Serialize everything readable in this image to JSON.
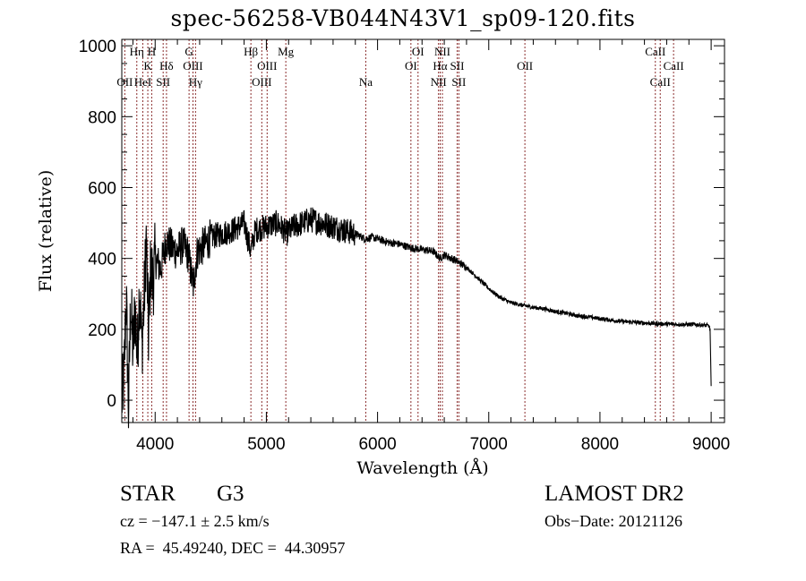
{
  "chart_data": {
    "type": "line",
    "title": "spec-56258-VB044N43V1_sp09-120.fits",
    "xlabel": "Wavelength (Å)",
    "ylabel": "Flux (relative)",
    "xlim": [
      3700,
      9120
    ],
    "ylim": [
      -63,
      1018
    ],
    "xticks": [
      4000,
      5000,
      6000,
      7000,
      8000,
      9000
    ],
    "xtick_labels": [
      "4000",
      "5000",
      "6000",
      "7000",
      "8000",
      "9000"
    ],
    "yticks": [
      0,
      200,
      400,
      600,
      800,
      1000
    ],
    "ytick_labels": [
      "0",
      "200",
      "400",
      "600",
      "800",
      "1000"
    ],
    "x_minor_step": 200,
    "y_minor_step": 50,
    "grid": false,
    "line_color": "#000000",
    "marker_color": "#8b2e2e",
    "spectrum_anchors": [
      [
        3700,
        0
      ],
      [
        3720,
        60
      ],
      [
        3740,
        300
      ],
      [
        3760,
        -30
      ],
      [
        3780,
        280
      ],
      [
        3800,
        140
      ],
      [
        3820,
        260
      ],
      [
        3840,
        120
      ],
      [
        3860,
        330
      ],
      [
        3880,
        150
      ],
      [
        3900,
        270
      ],
      [
        3920,
        460
      ],
      [
        3940,
        180
      ],
      [
        3960,
        380
      ],
      [
        3980,
        330
      ],
      [
        4000,
        400
      ],
      [
        4050,
        370
      ],
      [
        4100,
        450
      ],
      [
        4150,
        430
      ],
      [
        4200,
        420
      ],
      [
        4250,
        440
      ],
      [
        4300,
        410
      ],
      [
        4340,
        320
      ],
      [
        4380,
        420
      ],
      [
        4450,
        440
      ],
      [
        4500,
        460
      ],
      [
        4600,
        470
      ],
      [
        4700,
        480
      ],
      [
        4800,
        500
      ],
      [
        4860,
        420
      ],
      [
        4900,
        480
      ],
      [
        5000,
        490
      ],
      [
        5100,
        500
      ],
      [
        5180,
        470
      ],
      [
        5250,
        490
      ],
      [
        5400,
        510
      ],
      [
        5500,
        500
      ],
      [
        5600,
        490
      ],
      [
        5700,
        480
      ],
      [
        5800,
        470
      ],
      [
        5890,
        455
      ],
      [
        5950,
        460
      ],
      [
        6000,
        455
      ],
      [
        6100,
        445
      ],
      [
        6200,
        440
      ],
      [
        6300,
        430
      ],
      [
        6400,
        425
      ],
      [
        6500,
        420
      ],
      [
        6562,
        400
      ],
      [
        6600,
        410
      ],
      [
        6700,
        395
      ],
      [
        6800,
        375
      ],
      [
        6900,
        345
      ],
      [
        7000,
        315
      ],
      [
        7100,
        290
      ],
      [
        7200,
        275
      ],
      [
        7300,
        268
      ],
      [
        7400,
        262
      ],
      [
        7500,
        258
      ],
      [
        7600,
        250
      ],
      [
        7700,
        245
      ],
      [
        7800,
        238
      ],
      [
        7900,
        235
      ],
      [
        8000,
        230
      ],
      [
        8100,
        226
      ],
      [
        8200,
        222
      ],
      [
        8300,
        220
      ],
      [
        8400,
        218
      ],
      [
        8500,
        216
      ],
      [
        8600,
        215
      ],
      [
        8700,
        214
      ],
      [
        8800,
        214
      ],
      [
        8900,
        213
      ],
      [
        8980,
        210
      ],
      [
        8990,
        200
      ],
      [
        9000,
        40
      ]
    ],
    "line_markers": [
      {
        "label": "OII",
        "wavelength": 3727,
        "row": 3
      },
      {
        "label": "Hη",
        "wavelength": 3835,
        "row": 1
      },
      {
        "label": "HeI",
        "wavelength": 3889,
        "row": 3
      },
      {
        "label": "K",
        "wavelength": 3934,
        "row": 2
      },
      {
        "label": "H",
        "wavelength": 3969,
        "row": 1
      },
      {
        "label": "SII",
        "wavelength": 4072,
        "row": 3
      },
      {
        "label": "Hδ",
        "wavelength": 4102,
        "row": 2
      },
      {
        "label": "G",
        "wavelength": 4305,
        "row": 1
      },
      {
        "label": "OIII",
        "wavelength": 4340,
        "row": 2
      },
      {
        "label": "Hγ",
        "wavelength": 4363,
        "row": 3
      },
      {
        "label": "Hβ",
        "wavelength": 4861,
        "row": 1
      },
      {
        "label": "OIII",
        "wavelength": 4959,
        "row": 3
      },
      {
        "label": "OIII",
        "wavelength": 5007,
        "row": 2
      },
      {
        "label": "Mg",
        "wavelength": 5175,
        "row": 1
      },
      {
        "label": "Na",
        "wavelength": 5894,
        "row": 3
      },
      {
        "label": "OI",
        "wavelength": 6300,
        "row": 2
      },
      {
        "label": "OI",
        "wavelength": 6364,
        "row": 1
      },
      {
        "label": "NII",
        "wavelength": 6548,
        "row": 3
      },
      {
        "label": "Hα",
        "wavelength": 6563,
        "row": 2
      },
      {
        "label": "NII",
        "wavelength": 6583,
        "row": 1
      },
      {
        "label": "SII",
        "wavelength": 6716,
        "row": 2
      },
      {
        "label": "SII",
        "wavelength": 6731,
        "row": 3
      },
      {
        "label": "OII",
        "wavelength": 7325,
        "row": 2
      },
      {
        "label": "CaII",
        "wavelength": 8498,
        "row": 1
      },
      {
        "label": "CaII",
        "wavelength": 8542,
        "row": 3
      },
      {
        "label": "CaII",
        "wavelength": 8662,
        "row": 2
      }
    ]
  },
  "info": {
    "object_class": "STAR",
    "subclass": "G3",
    "survey": "LAMOST DR2",
    "redshift": "cz = −147.1 ± 2.5 km/s",
    "obs_date": "Obs−Date: 20121126",
    "coords": "RA =  45.49240, DEC =  44.30957"
  }
}
